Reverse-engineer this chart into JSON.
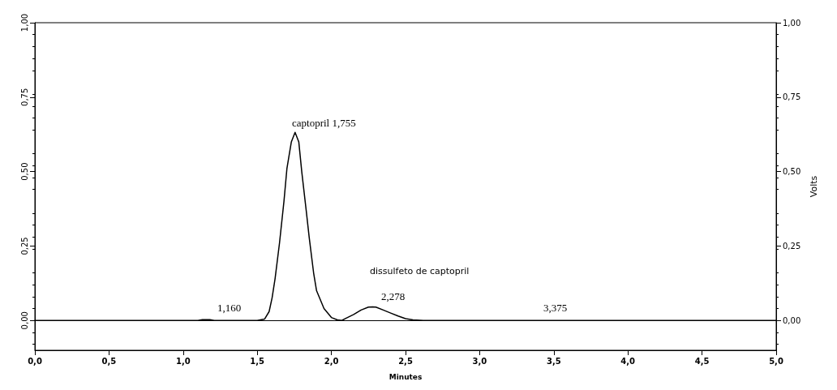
{
  "chart_data": {
    "type": "line",
    "xlabel": "Minutes",
    "y2label": "Volts",
    "series": [
      {
        "color": "#000000",
        "x": [
          0,
          1.1,
          1.13,
          1.18,
          1.21,
          1.5,
          1.55,
          1.58,
          1.6,
          1.62,
          1.65,
          1.68,
          1.7,
          1.73,
          1.755,
          1.78,
          1.8,
          1.83,
          1.85,
          1.88,
          1.9,
          1.95,
          2.0,
          2.04,
          2.07,
          2.1,
          2.15,
          2.2,
          2.25,
          2.278,
          2.3,
          2.35,
          2.4,
          2.45,
          2.5,
          2.55,
          2.62,
          5.0
        ],
        "values": [
          0,
          0,
          0.003,
          0.003,
          0,
          0,
          0.005,
          0.03,
          0.076,
          0.14,
          0.26,
          0.4,
          0.51,
          0.6,
          0.632,
          0.6,
          0.5,
          0.37,
          0.28,
          0.16,
          0.1,
          0.04,
          0.01,
          0.002,
          0,
          0.008,
          0.02,
          0.035,
          0.045,
          0.046,
          0.045,
          0.035,
          0.025,
          0.015,
          0.006,
          0.002,
          0,
          0
        ]
      }
    ],
    "xlim": [
      0,
      5
    ],
    "xticks": [
      {
        "value": 0,
        "label": "0,0"
      },
      {
        "value": 0.5,
        "label": "0,5"
      },
      {
        "value": 1,
        "label": "1,0"
      },
      {
        "value": 1.5,
        "label": "1,5"
      },
      {
        "value": 2,
        "label": "2,0"
      },
      {
        "value": 2.5,
        "label": "2,5"
      },
      {
        "value": 3,
        "label": "3,0"
      },
      {
        "value": 3.5,
        "label": "3,5"
      },
      {
        "value": 4,
        "label": "4,0"
      },
      {
        "value": 4.5,
        "label": "4,5"
      },
      {
        "value": 5,
        "label": "5,0"
      }
    ],
    "ylim": [
      -0.1,
      1.0
    ],
    "yticks": [
      {
        "value": 0,
        "label": "0,00"
      },
      {
        "value": 0.25,
        "label": "0,25"
      },
      {
        "value": 0.5,
        "label": "0,50"
      },
      {
        "value": 0.75,
        "label": "0,75"
      },
      {
        "value": 1,
        "label": "1,00"
      }
    ],
    "y2lim": [
      -0.1,
      1.0
    ],
    "y2ticks": [
      {
        "value": 0,
        "label": "0,00"
      },
      {
        "value": 0.25,
        "label": "0,25"
      },
      {
        "value": 0.5,
        "label": "0,50"
      },
      {
        "value": 0.75,
        "label": "0,75"
      },
      {
        "value": 1,
        "label": "1,00"
      }
    ],
    "ref_lines": [
      {
        "axis": "y",
        "value": 0,
        "color": "#000000"
      }
    ],
    "annotations": [
      "captopril 1,755",
      "dissulfeto de captopril",
      "2,278",
      "1,160",
      "3,375"
    ],
    "grid": false,
    "marker": "none",
    "line_style": "solid"
  }
}
